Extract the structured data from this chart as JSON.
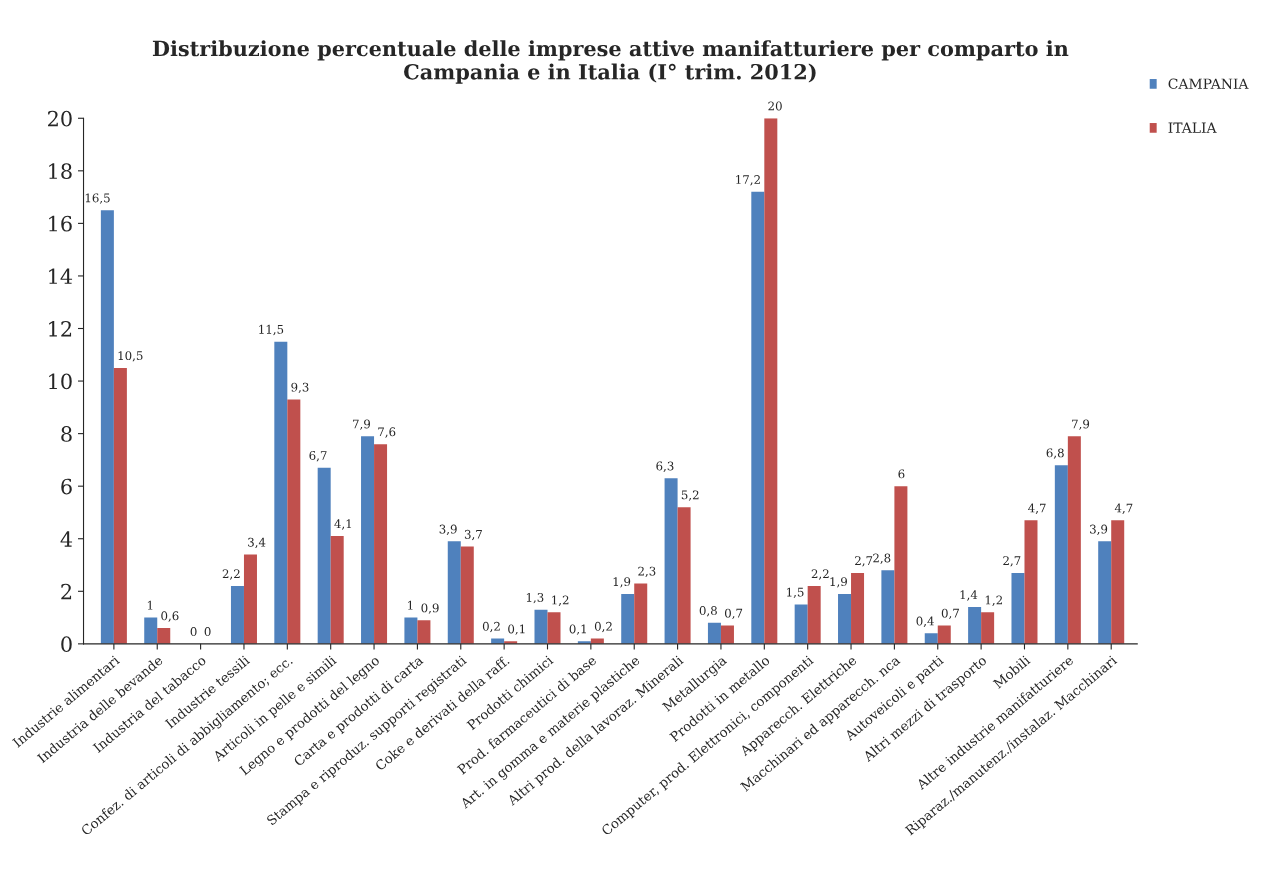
{
  "chart_data": {
    "type": "bar",
    "title": "Distribuzione percentuale delle imprese attive manifatturiere per comparto in\nCampania e in Italia (I° trim. 2012)",
    "categories": [
      "Industrie alimentari",
      "Industria delle bevande",
      "Industria del tabacco",
      "Industrie tessili",
      "Confez. di articoli di abbigliamento; ecc.",
      "Articoli in pelle e simili",
      "Legno e prodotti del legno",
      "Carta e prodotti di carta",
      "Stampa e riproduz. supporti registrati",
      "Coke e derivati della raff.",
      "Prodotti chimici",
      "Prod. farmaceutici di base",
      "Art. in gomma e materie plastiche",
      "Altri prod. della lavoraz. Minerali",
      "Metallurgia",
      "Prodotti in metallo",
      "Computer, prod. Elettronici, componenti",
      "Apparecch. Elettriche",
      "Macchinari ed apparecch. nca",
      "Autoveicoli e parti",
      "Altri mezzi di trasporto",
      "Mobili",
      "Altre industrie manifatturiere",
      "Riparaz./manutenz./instalaz. Macchinari"
    ],
    "series": [
      {
        "name": "CAMPANIA",
        "color": "#4f81bd",
        "values": [
          16.5,
          1,
          0,
          2.2,
          11.5,
          6.7,
          7.9,
          1,
          3.9,
          0.2,
          1.3,
          0.1,
          1.9,
          6.3,
          0.8,
          17.2,
          1.5,
          1.9,
          2.8,
          0.4,
          1.4,
          2.7,
          6.8,
          3.9
        ],
        "value_labels": [
          "16,5",
          "1",
          "0",
          "2,2",
          "11,5",
          "6,7",
          "7,9",
          "1",
          "3,9",
          "0,2",
          "1,3",
          "0,1",
          "1,9",
          "6,3",
          "0,8",
          "17,2",
          "1,5",
          "1,9",
          "2,8",
          "0,4",
          "1,4",
          "2,7",
          "6,8",
          "3,9"
        ]
      },
      {
        "name": "ITALIA",
        "color": "#c0504d",
        "values": [
          10.5,
          0.6,
          0,
          3.4,
          9.3,
          4.1,
          7.6,
          0.9,
          3.7,
          0.1,
          1.2,
          0.2,
          2.3,
          5.2,
          0.7,
          20,
          2.2,
          2.7,
          6,
          0.7,
          1.2,
          4.7,
          7.9,
          4.7
        ],
        "value_labels": [
          "10,5",
          "0,6",
          "0",
          "3,4",
          "9,3",
          "4,1",
          "7,6",
          "0,9",
          "3,7",
          "0,1",
          "1,2",
          "0,2",
          "2,3",
          "5,2",
          "0,7",
          "20",
          "2,2",
          "2,7",
          "6",
          "0,7",
          "1,2",
          "4,7",
          "7,9",
          "4,7"
        ]
      }
    ],
    "ylim": [
      0,
      20
    ],
    "yticks": [
      0,
      2,
      4,
      6,
      8,
      10,
      12,
      14,
      16,
      18,
      20
    ],
    "grid": false,
    "legend": "top right"
  }
}
